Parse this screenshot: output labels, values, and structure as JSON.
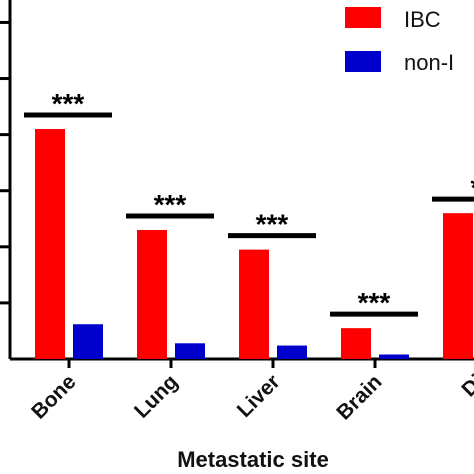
{
  "chart_data": {
    "type": "bar",
    "categories": [
      "Bone",
      "Lung",
      "Liver",
      "Brain",
      "Di"
    ],
    "series": [
      {
        "name": "IBC",
        "color": "#ff0000",
        "values": [
          41,
          23,
          19.5,
          5.5,
          26
        ]
      },
      {
        "name": "non-I",
        "color": "#0000cc",
        "values": [
          6.2,
          2.8,
          2.4,
          0.8,
          null
        ]
      }
    ],
    "ylim": [
      0,
      64
    ],
    "xlabel": "Metastatic site",
    "ylabel": "",
    "title": "",
    "significance": [
      {
        "category": "Bone",
        "label": "***"
      },
      {
        "category": "Lung",
        "label": "***"
      },
      {
        "category": "Liver",
        "label": "***"
      },
      {
        "category": "Brain",
        "label": "***"
      },
      {
        "category": "Di",
        "label": "*"
      }
    ],
    "legend": {
      "position": "top-right"
    }
  }
}
